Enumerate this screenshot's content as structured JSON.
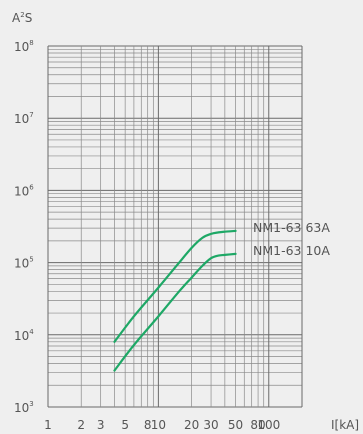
{
  "chart_data": {
    "type": "line",
    "ylabel_base": "A",
    "ylabel_sup": "2",
    "ylabel_tail": "S",
    "xlabel": "I[kA]",
    "x_scale": "log",
    "y_scale": "log",
    "xlim": [
      1,
      200
    ],
    "ylim": [
      1000,
      100000000
    ],
    "grid": true,
    "x_ticks": [
      {
        "value": 1,
        "label": "1"
      },
      {
        "value": 2,
        "label": "2"
      },
      {
        "value": 3,
        "label": "3"
      },
      {
        "value": 5,
        "label": "5"
      },
      {
        "value": 8,
        "label": "8"
      },
      {
        "value": 10,
        "label": "10"
      },
      {
        "value": 20,
        "label": "20"
      },
      {
        "value": 30,
        "label": "30"
      },
      {
        "value": 50,
        "label": "50"
      },
      {
        "value": 80,
        "label": "80"
      },
      {
        "value": 100,
        "label": "100"
      }
    ],
    "y_ticks": [
      {
        "value": 1000,
        "base": "10",
        "exp": "3"
      },
      {
        "value": 10000,
        "base": "10",
        "exp": "4"
      },
      {
        "value": 100000,
        "base": "10",
        "exp": "5"
      },
      {
        "value": 1000000,
        "base": "10",
        "exp": "6"
      },
      {
        "value": 10000000,
        "base": "10",
        "exp": "7"
      },
      {
        "value": 100000000,
        "base": "10",
        "exp": "8"
      }
    ],
    "series": [
      {
        "name": "NM1-63  63A",
        "color": "#1ea866",
        "x": [
          4,
          6,
          10,
          15,
          20,
          25,
          30,
          35,
          40,
          50
        ],
        "y": [
          8000,
          18000,
          45000,
          95000,
          160000,
          220000,
          250000,
          262000,
          268000,
          275000
        ]
      },
      {
        "name": "NM1-63  10A",
        "color": "#1ea866",
        "x": [
          4,
          6,
          10,
          15,
          20,
          25,
          30,
          35,
          40,
          50
        ],
        "y": [
          3200,
          7200,
          18000,
          38000,
          62000,
          90000,
          115000,
          125000,
          128000,
          132000
        ]
      }
    ]
  }
}
